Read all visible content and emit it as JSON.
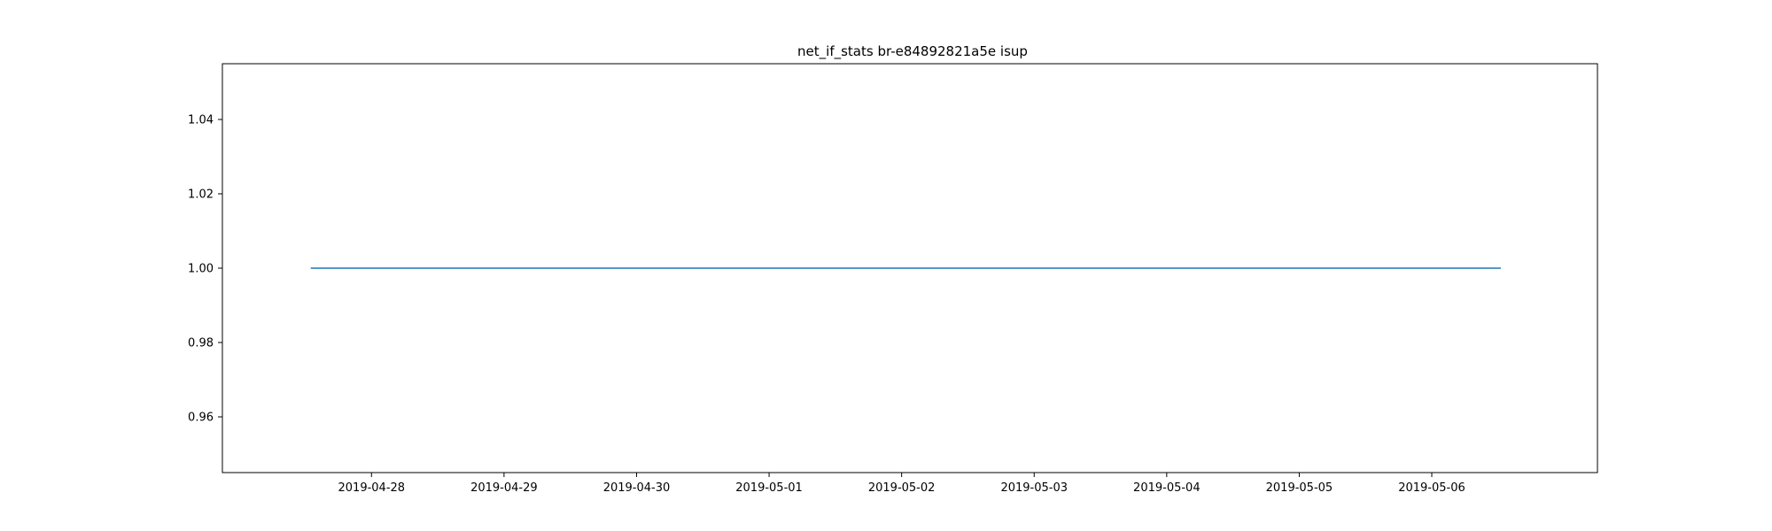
{
  "chart_data": {
    "type": "line",
    "title": "net_if_stats br-e84892821a5e isup",
    "xlabel": "",
    "ylabel": "",
    "x_tick_labels": [
      "2019-04-28",
      "2019-04-29",
      "2019-04-30",
      "2019-05-01",
      "2019-05-02",
      "2019-05-03",
      "2019-05-04",
      "2019-05-05",
      "2019-05-06"
    ],
    "y_ticks": [
      0.96,
      0.98,
      1.0,
      1.02,
      1.04
    ],
    "y_tick_labels": [
      "0.96",
      "0.98",
      "1.00",
      "1.02",
      "1.04"
    ],
    "xlim": [
      "2019-04-26T21:00",
      "2019-05-07T06:00"
    ],
    "ylim": [
      0.945,
      1.055
    ],
    "grid": false,
    "legend": "none",
    "series": [
      {
        "color": "#1f77b4",
        "x": [
          "2019-04-27T13:00",
          "2019-05-06T12:30"
        ],
        "y": [
          1,
          1
        ]
      }
    ]
  }
}
